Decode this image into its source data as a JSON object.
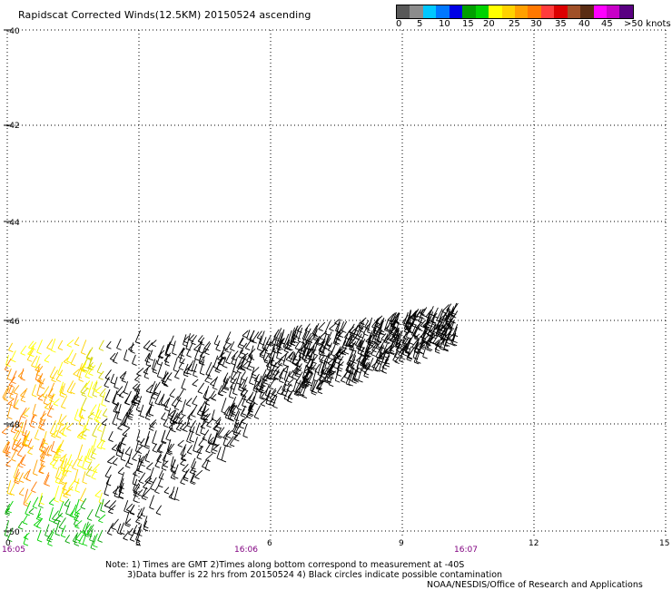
{
  "title": "Rapidscat Corrected Winds(12.5KM) 20150524 ascending",
  "colorbar": {
    "colors": [
      "#595959",
      "#8c8c8c",
      "#00c8ff",
      "#0078ff",
      "#0000e6",
      "#00a000",
      "#00d200",
      "#ffff00",
      "#ffd200",
      "#ffa000",
      "#ff7800",
      "#ff3c3c",
      "#dc0000",
      "#a05028",
      "#5a2d14",
      "#ff00ff",
      "#c800c8",
      "#5a0082"
    ],
    "labels": [
      "0",
      "5",
      "10",
      "15",
      "20",
      "25",
      "30",
      "35",
      "40",
      "45",
      ">50 knots"
    ]
  },
  "axes": {
    "y_labels": [
      "-40",
      "-42",
      "-44",
      "-46",
      "-48",
      "-50"
    ],
    "x_labels": [
      "0",
      "3",
      "6",
      "9",
      "12",
      "15"
    ],
    "time_labels": [
      "16:05",
      "16:06",
      "16:07"
    ],
    "time_color": "#800080",
    "grid": "dotted"
  },
  "notes": {
    "line1": "Note: 1) Times are GMT 2)Times along bottom correspond to measurement at -40S",
    "line2": "3)Data buffer is 22 hrs from 20150524 4) Black circles indicate possible contamination",
    "credit": "NOAA/NESDIS/Office of Research and Applications"
  }
}
